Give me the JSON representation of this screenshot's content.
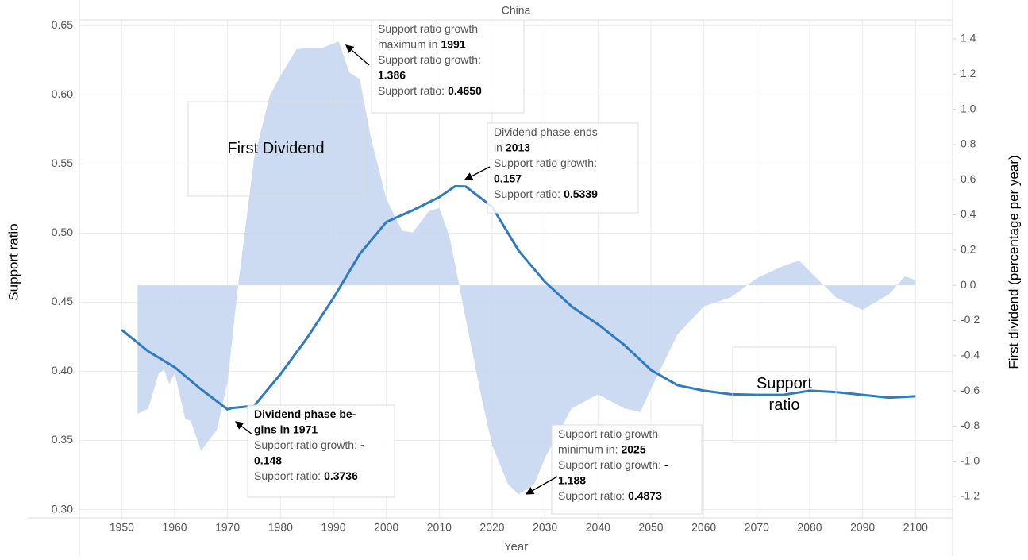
{
  "chart_data": {
    "type": "dual-axis-line-area",
    "title": "China",
    "x_label": "Year",
    "y_label": "Support ratio",
    "y2_label": "First dividend (percentage per year)",
    "xlim": [
      1942,
      2107
    ],
    "xticks": [
      1950,
      1960,
      1970,
      1980,
      1990,
      2000,
      2010,
      2020,
      2030,
      2040,
      2050,
      2060,
      2070,
      2080,
      2090,
      2100
    ],
    "ylim": [
      0.294,
      0.664
    ],
    "yticks": [
      {
        "value": 0.3,
        "label": "0.30"
      },
      0.35,
      {
        "value": 0.4,
        "label": "0.40"
      },
      0.45,
      {
        "value": 0.5,
        "label": "0.50"
      },
      0.55,
      {
        "value": 0.6,
        "label": "0.60"
      },
      0.65
    ],
    "y2lim": [
      -1.322,
      1.585
    ],
    "y2ticks": [
      {
        "value": -1.2,
        "label": "-1.2"
      },
      {
        "value": -1,
        "label": "-1.0"
      },
      -0.8,
      -0.6,
      -0.4,
      -0.2,
      {
        "value": 0,
        "label": "0.0"
      },
      0.2,
      0.4,
      0.6,
      0.8,
      {
        "value": 1,
        "label": "1.0"
      },
      1.2,
      1.4
    ],
    "grid": true,
    "series": [
      {
        "name": "Support ratio",
        "kind": "line",
        "axis": "y",
        "color": "#2e7bbf",
        "x": [
          1950,
          1955,
          1960,
          1965,
          1970,
          1971,
          1975,
          1980,
          1985,
          1990,
          1995,
          2000,
          2005,
          2010,
          2013,
          2015,
          2020,
          2025,
          2030,
          2035,
          2040,
          2045,
          2050,
          2055,
          2060,
          2065,
          2070,
          2075,
          2080,
          2085,
          2090,
          2095,
          2100
        ],
        "values": [
          0.43,
          0.4145,
          0.403,
          0.387,
          0.3725,
          0.3736,
          0.375,
          0.398,
          0.424,
          0.453,
          0.485,
          0.508,
          0.5165,
          0.526,
          0.5339,
          0.5337,
          0.519,
          0.4873,
          0.4646,
          0.447,
          0.434,
          0.419,
          0.401,
          0.39,
          0.386,
          0.3835,
          0.383,
          0.383,
          0.386,
          0.385,
          0.383,
          0.381,
          0.382
        ]
      },
      {
        "name": "First Dividend",
        "kind": "area",
        "axis": "y2",
        "color": "#c6d7f0",
        "x": [
          1953,
          1955,
          1957,
          1958,
          1959,
          1960,
          1962,
          1963,
          1965,
          1968,
          1970,
          1972,
          1975,
          1978,
          1980,
          1983,
          1985,
          1988,
          1991,
          1993,
          1995,
          1997,
          2000,
          2003,
          2005,
          2008,
          2010,
          2012,
          2015,
          2018,
          2020,
          2023,
          2025,
          2028,
          2030,
          2035,
          2040,
          2045,
          2048,
          2050,
          2055,
          2060,
          2065,
          2070,
          2075,
          2078,
          2082,
          2085,
          2090,
          2095,
          2098,
          2100
        ],
        "values": [
          -0.73,
          -0.7,
          -0.5,
          -0.48,
          -0.56,
          -0.5,
          -0.76,
          -0.77,
          -0.94,
          -0.82,
          -0.55,
          0.0,
          0.72,
          1.08,
          1.19,
          1.34,
          1.35,
          1.35,
          1.386,
          1.21,
          1.17,
          0.85,
          0.49,
          0.31,
          0.3,
          0.42,
          0.44,
          0.27,
          -0.19,
          -0.64,
          -0.91,
          -1.13,
          -1.188,
          -1.13,
          -0.98,
          -0.7,
          -0.62,
          -0.7,
          -0.72,
          -0.59,
          -0.28,
          -0.12,
          -0.07,
          0.04,
          0.11,
          0.14,
          0.02,
          -0.07,
          -0.14,
          -0.05,
          0.05,
          0.03
        ]
      }
    ],
    "annotations": [
      {
        "lines": [
          [
            {
              "text": "Support ratio growth"
            }
          ],
          [
            {
              "text": "maximum in"
            },
            {
              "text": "1991",
              "bold": true
            }
          ],
          [
            {
              "text": "Support ratio growth:"
            }
          ],
          [
            {
              "text": "1.386",
              "bold": true
            }
          ],
          [
            {
              "text": "Support ratio:"
            },
            {
              "text": "0.4650",
              "bold": true
            }
          ]
        ]
      },
      {
        "lines": [
          [
            {
              "text": "Dividend phase ends"
            }
          ],
          [
            {
              "text": "in"
            },
            {
              "text": "2013",
              "bold": true
            }
          ],
          [
            {
              "text": "Support ratio growth:"
            }
          ],
          [
            {
              "text": "0.157",
              "bold": true
            }
          ],
          [
            {
              "text": "Support ratio:"
            },
            {
              "text": "0.5339",
              "bold": true
            }
          ]
        ]
      },
      {
        "lines": [
          [
            {
              "text": "Dividend phase be-",
              "bold": true
            }
          ],
          [
            {
              "text": "gins in 1971",
              "bold": true
            }
          ],
          [
            {
              "text": "Support ratio growth:"
            },
            {
              "text": "-",
              "bold": true
            }
          ],
          [
            {
              "text": "0.148",
              "bold": true
            }
          ],
          [
            {
              "text": "Support ratio:"
            },
            {
              "text": "0.3736",
              "bold": true
            }
          ]
        ]
      },
      {
        "lines": [
          [
            {
              "text": "Support ratio growth"
            }
          ],
          [
            {
              "text": "minimum in:"
            },
            {
              "text": "2025",
              "bold": true
            }
          ],
          [
            {
              "text": "Support ratio growth:"
            },
            {
              "text": "-",
              "bold": true
            }
          ],
          [
            {
              "text": "1.188",
              "bold": true
            }
          ],
          [
            {
              "text": "Support ratio:"
            },
            {
              "text": "0.4873",
              "bold": true
            }
          ]
        ]
      }
    ],
    "labels": [
      {
        "lines": [
          "First Dividend"
        ]
      },
      {
        "lines": [
          "Support",
          "ratio"
        ]
      }
    ]
  }
}
